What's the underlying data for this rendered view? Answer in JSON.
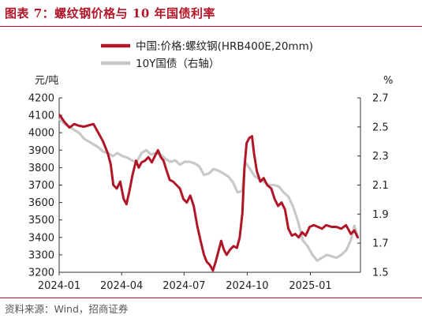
{
  "title": "图表 7：螺纹钢价格与 10 年国债利率",
  "source": "资料来源：Wind，招商证券",
  "chart_data": {
    "type": "line",
    "left_unit": "元/吨",
    "right_unit": "%",
    "legend_position": "top-right",
    "grid": false,
    "x_range": [
      "2024-01-01",
      "2025-03-15"
    ],
    "x_ticks": [
      "2024-01",
      "2024-04",
      "2024-07",
      "2024-10",
      "2025-01"
    ],
    "y_left": {
      "min": 3200,
      "max": 4200,
      "ticks": [
        "3200",
        "3300",
        "3400",
        "3500",
        "3600",
        "3700",
        "3800",
        "3900",
        "4000",
        "4100",
        "4200"
      ]
    },
    "y_right": {
      "min": 1.5,
      "max": 2.7,
      "ticks": [
        "1.5",
        "1.7",
        "1.9",
        "2.1",
        "2.3",
        "2.5",
        "2.7"
      ]
    },
    "series": [
      {
        "name": "中国:价格:螺纹钢(HRB400E,20mm)",
        "axis": "left",
        "color": "#b01628",
        "points": [
          [
            "2024-01-02",
            4100
          ],
          [
            "2024-01-09",
            4060
          ],
          [
            "2024-01-16",
            4030
          ],
          [
            "2024-01-23",
            4050
          ],
          [
            "2024-01-30",
            4040
          ],
          [
            "2024-02-06",
            4035
          ],
          [
            "2024-02-20",
            4050
          ],
          [
            "2024-02-27",
            4000
          ],
          [
            "2024-03-05",
            3950
          ],
          [
            "2024-03-12",
            3880
          ],
          [
            "2024-03-16",
            3820
          ],
          [
            "2024-03-20",
            3700
          ],
          [
            "2024-03-25",
            3680
          ],
          [
            "2024-03-30",
            3720
          ],
          [
            "2024-04-04",
            3620
          ],
          [
            "2024-04-08",
            3590
          ],
          [
            "2024-04-12",
            3660
          ],
          [
            "2024-04-17",
            3760
          ],
          [
            "2024-04-22",
            3840
          ],
          [
            "2024-04-26",
            3800
          ],
          [
            "2024-04-30",
            3830
          ],
          [
            "2024-05-05",
            3840
          ],
          [
            "2024-05-10",
            3860
          ],
          [
            "2024-05-15",
            3830
          ],
          [
            "2024-05-20",
            3870
          ],
          [
            "2024-05-24",
            3900
          ],
          [
            "2024-05-28",
            3860
          ],
          [
            "2024-06-01",
            3840
          ],
          [
            "2024-06-05",
            3790
          ],
          [
            "2024-06-10",
            3730
          ],
          [
            "2024-06-15",
            3720
          ],
          [
            "2024-06-20",
            3700
          ],
          [
            "2024-06-25",
            3680
          ],
          [
            "2024-06-30",
            3620
          ],
          [
            "2024-07-05",
            3600
          ],
          [
            "2024-07-10",
            3640
          ],
          [
            "2024-07-15",
            3580
          ],
          [
            "2024-07-20",
            3470
          ],
          [
            "2024-07-25",
            3380
          ],
          [
            "2024-07-30",
            3300
          ],
          [
            "2024-08-03",
            3260
          ],
          [
            "2024-08-08",
            3240
          ],
          [
            "2024-08-12",
            3210
          ],
          [
            "2024-08-16",
            3260
          ],
          [
            "2024-08-20",
            3320
          ],
          [
            "2024-08-24",
            3380
          ],
          [
            "2024-08-28",
            3330
          ],
          [
            "2024-09-01",
            3300
          ],
          [
            "2024-09-06",
            3330
          ],
          [
            "2024-09-11",
            3350
          ],
          [
            "2024-09-16",
            3340
          ],
          [
            "2024-09-20",
            3400
          ],
          [
            "2024-09-24",
            3540
          ],
          [
            "2024-09-27",
            3800
          ],
          [
            "2024-09-30",
            3940
          ],
          [
            "2024-10-04",
            3970
          ],
          [
            "2024-10-08",
            3980
          ],
          [
            "2024-10-11",
            3880
          ],
          [
            "2024-10-15",
            3780
          ],
          [
            "2024-10-20",
            3720
          ],
          [
            "2024-10-25",
            3740
          ],
          [
            "2024-10-30",
            3700
          ],
          [
            "2024-11-05",
            3680
          ],
          [
            "2024-11-10",
            3620
          ],
          [
            "2024-11-15",
            3580
          ],
          [
            "2024-11-20",
            3600
          ],
          [
            "2024-11-25",
            3560
          ],
          [
            "2024-11-30",
            3450
          ],
          [
            "2024-12-05",
            3410
          ],
          [
            "2024-12-10",
            3420
          ],
          [
            "2024-12-15",
            3400
          ],
          [
            "2024-12-20",
            3430
          ],
          [
            "2024-12-25",
            3410
          ],
          [
            "2024-12-31",
            3460
          ],
          [
            "2025-01-06",
            3470
          ],
          [
            "2025-01-12",
            3460
          ],
          [
            "2025-01-18",
            3450
          ],
          [
            "2025-01-24",
            3470
          ],
          [
            "2025-02-01",
            3460
          ],
          [
            "2025-02-08",
            3460
          ],
          [
            "2025-02-15",
            3450
          ],
          [
            "2025-02-22",
            3470
          ],
          [
            "2025-03-01",
            3420
          ],
          [
            "2025-03-06",
            3440
          ],
          [
            "2025-03-11",
            3400
          ]
        ]
      },
      {
        "name": "10Y国债（右轴）",
        "axis": "right",
        "color": "#c8c8c8",
        "points": [
          [
            "2024-01-02",
            2.55
          ],
          [
            "2024-01-09",
            2.52
          ],
          [
            "2024-01-16",
            2.5
          ],
          [
            "2024-01-23",
            2.48
          ],
          [
            "2024-01-30",
            2.46
          ],
          [
            "2024-02-06",
            2.42
          ],
          [
            "2024-02-13",
            2.4
          ],
          [
            "2024-02-20",
            2.38
          ],
          [
            "2024-02-27",
            2.36
          ],
          [
            "2024-03-05",
            2.33
          ],
          [
            "2024-03-12",
            2.32
          ],
          [
            "2024-03-19",
            2.3
          ],
          [
            "2024-03-26",
            2.32
          ],
          [
            "2024-04-02",
            2.3
          ],
          [
            "2024-04-09",
            2.29
          ],
          [
            "2024-04-16",
            2.27
          ],
          [
            "2024-04-23",
            2.26
          ],
          [
            "2024-04-30",
            2.32
          ],
          [
            "2024-05-07",
            2.34
          ],
          [
            "2024-05-14",
            2.31
          ],
          [
            "2024-05-21",
            2.32
          ],
          [
            "2024-05-28",
            2.31
          ],
          [
            "2024-06-04",
            2.28
          ],
          [
            "2024-06-11",
            2.26
          ],
          [
            "2024-06-18",
            2.27
          ],
          [
            "2024-06-25",
            2.24
          ],
          [
            "2024-07-02",
            2.26
          ],
          [
            "2024-07-09",
            2.26
          ],
          [
            "2024-07-16",
            2.25
          ],
          [
            "2024-07-23",
            2.23
          ],
          [
            "2024-07-30",
            2.17
          ],
          [
            "2024-08-06",
            2.18
          ],
          [
            "2024-08-13",
            2.21
          ],
          [
            "2024-08-20",
            2.2
          ],
          [
            "2024-08-27",
            2.18
          ],
          [
            "2024-09-03",
            2.16
          ],
          [
            "2024-09-10",
            2.12
          ],
          [
            "2024-09-17",
            2.05
          ],
          [
            "2024-09-24",
            2.06
          ],
          [
            "2024-09-28",
            2.26
          ],
          [
            "2024-10-05",
            2.21
          ],
          [
            "2024-10-12",
            2.16
          ],
          [
            "2024-10-19",
            2.14
          ],
          [
            "2024-10-26",
            2.12
          ],
          [
            "2024-11-02",
            2.1
          ],
          [
            "2024-11-09",
            2.1
          ],
          [
            "2024-11-16",
            2.09
          ],
          [
            "2024-11-23",
            2.05
          ],
          [
            "2024-11-30",
            2.02
          ],
          [
            "2024-12-07",
            1.95
          ],
          [
            "2024-12-14",
            1.85
          ],
          [
            "2024-12-21",
            1.72
          ],
          [
            "2024-12-28",
            1.68
          ],
          [
            "2025-01-04",
            1.62
          ],
          [
            "2025-01-11",
            1.58
          ],
          [
            "2025-01-18",
            1.6
          ],
          [
            "2025-01-25",
            1.62
          ],
          [
            "2025-02-01",
            1.61
          ],
          [
            "2025-02-08",
            1.6
          ],
          [
            "2025-02-15",
            1.62
          ],
          [
            "2025-02-22",
            1.65
          ],
          [
            "2025-03-01",
            1.72
          ],
          [
            "2025-03-06",
            1.82
          ],
          [
            "2025-03-11",
            1.75
          ]
        ]
      }
    ]
  }
}
